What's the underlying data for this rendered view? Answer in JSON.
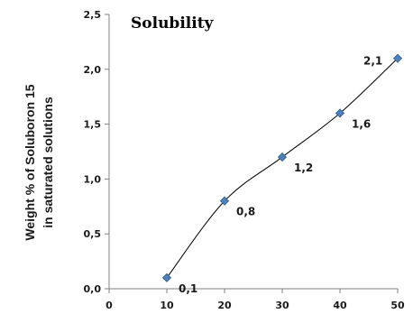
{
  "chart_data": {
    "type": "scatter",
    "title": "Solubility",
    "ylabel_lines": [
      "Weight % of Soluboron 15",
      "in saturated solutions"
    ],
    "xlabel": "",
    "x": [
      10,
      20,
      30,
      40,
      50
    ],
    "y": [
      0.1,
      0.8,
      1.2,
      1.6,
      2.1
    ],
    "point_labels": [
      "0,1",
      "0,8",
      "1,2",
      "1,6",
      "2,1"
    ],
    "xlim": [
      0,
      50
    ],
    "ylim": [
      0,
      2.5
    ],
    "x_ticks": [
      "0",
      "10",
      "20",
      "30",
      "40",
      "50"
    ],
    "y_ticks": [
      "0,0",
      "0,5",
      "1,0",
      "1,5",
      "2,0",
      "2,5"
    ],
    "grid": false,
    "legend": "none",
    "trendline": "smooth",
    "marker": "diamond",
    "colors": {
      "marker": "#4f81bd",
      "marker_edge": "#2c5a8c",
      "line": "#000000",
      "axis": "#808080"
    }
  }
}
